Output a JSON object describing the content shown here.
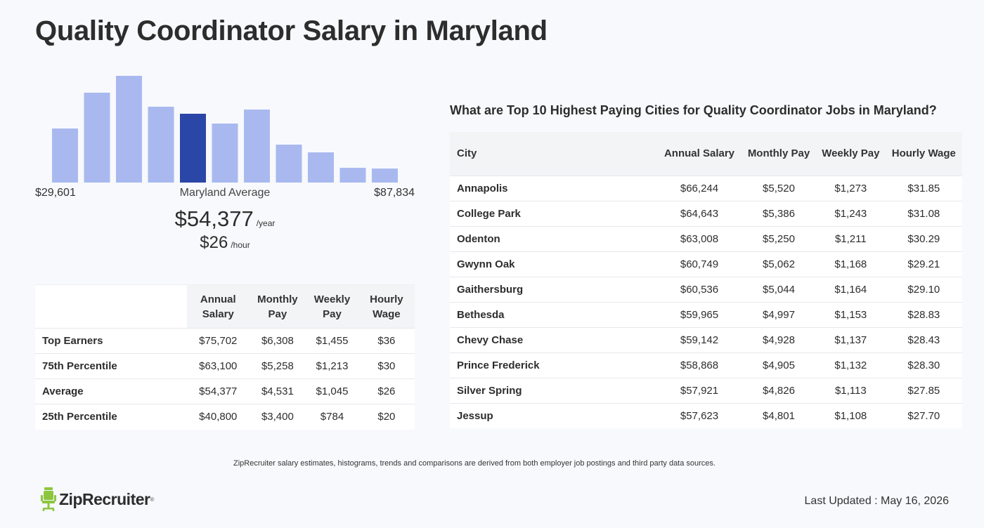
{
  "title": "Quality Coordinator Salary in Maryland",
  "histogram": {
    "min_label": "$29,601",
    "mid_label": "Maryland Average",
    "max_label": "$87,834",
    "colors": {
      "bar": "#a9b9f0",
      "highlight": "#2a46a6"
    }
  },
  "average": {
    "annual": "$54,377",
    "annual_unit": "/year",
    "hourly": "$26",
    "hourly_unit": "/hour"
  },
  "chart_data": {
    "type": "bar",
    "title": "",
    "xlabel": "",
    "ylabel": "",
    "categories": [
      "1",
      "2",
      "3",
      "4",
      "5",
      "6",
      "7",
      "8",
      "9",
      "10",
      "11"
    ],
    "values": [
      77,
      128,
      152,
      108,
      98,
      84,
      104,
      54,
      43,
      21,
      20
    ],
    "highlight_index": 4,
    "ylim": [
      0,
      160
    ],
    "grid": false
  },
  "percentile_table": {
    "headers": [
      "Annual Salary",
      "Monthly Pay",
      "Weekly Pay",
      "Hourly Wage"
    ],
    "rows": [
      {
        "label": "Top Earners",
        "annual": "$75,702",
        "monthly": "$6,308",
        "weekly": "$1,455",
        "hourly": "$36"
      },
      {
        "label": "75th Percentile",
        "annual": "$63,100",
        "monthly": "$5,258",
        "weekly": "$1,213",
        "hourly": "$30"
      },
      {
        "label": "Average",
        "annual": "$54,377",
        "monthly": "$4,531",
        "weekly": "$1,045",
        "hourly": "$26"
      },
      {
        "label": "25th Percentile",
        "annual": "$40,800",
        "monthly": "$3,400",
        "weekly": "$784",
        "hourly": "$20"
      }
    ]
  },
  "cities": {
    "title": "What are Top 10 Highest Paying Cities for Quality Coordinator Jobs in Maryland?",
    "headers": [
      "City",
      "Annual Salary",
      "Monthly Pay",
      "Weekly Pay",
      "Hourly Wage"
    ],
    "rows": [
      {
        "city": "Annapolis",
        "annual": "$66,244",
        "monthly": "$5,520",
        "weekly": "$1,273",
        "hourly": "$31.85"
      },
      {
        "city": "College Park",
        "annual": "$64,643",
        "monthly": "$5,386",
        "weekly": "$1,243",
        "hourly": "$31.08"
      },
      {
        "city": "Odenton",
        "annual": "$63,008",
        "monthly": "$5,250",
        "weekly": "$1,211",
        "hourly": "$30.29"
      },
      {
        "city": "Gwynn Oak",
        "annual": "$60,749",
        "monthly": "$5,062",
        "weekly": "$1,168",
        "hourly": "$29.21"
      },
      {
        "city": "Gaithersburg",
        "annual": "$60,536",
        "monthly": "$5,044",
        "weekly": "$1,164",
        "hourly": "$29.10"
      },
      {
        "city": "Bethesda",
        "annual": "$59,965",
        "monthly": "$4,997",
        "weekly": "$1,153",
        "hourly": "$28.83"
      },
      {
        "city": "Chevy Chase",
        "annual": "$59,142",
        "monthly": "$4,928",
        "weekly": "$1,137",
        "hourly": "$28.43"
      },
      {
        "city": "Prince Frederick",
        "annual": "$58,868",
        "monthly": "$4,905",
        "weekly": "$1,132",
        "hourly": "$28.30"
      },
      {
        "city": "Silver Spring",
        "annual": "$57,921",
        "monthly": "$4,826",
        "weekly": "$1,113",
        "hourly": "$27.85"
      },
      {
        "city": "Jessup",
        "annual": "$57,623",
        "monthly": "$4,801",
        "weekly": "$1,108",
        "hourly": "$27.70"
      }
    ]
  },
  "footnote": "ZipRecruiter salary estimates, histograms, trends and comparisons are derived from both employer job postings and third party data sources.",
  "brand": {
    "name": "ZipRecruiter",
    "tm": "®",
    "logo_icon": "chair-icon",
    "logo_color": "#8cc63f"
  },
  "last_updated": "Last Updated : May 16, 2026"
}
